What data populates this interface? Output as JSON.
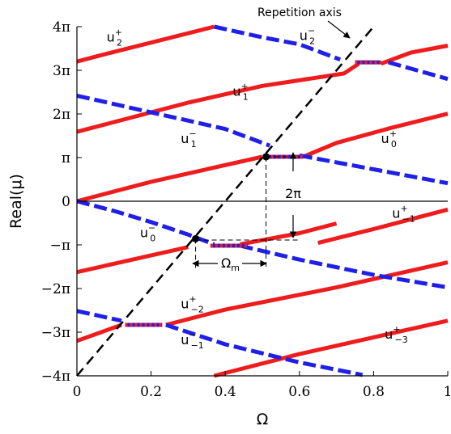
{
  "chart_data": {
    "type": "line",
    "xlabel": "Ω",
    "ylabel": "Real(μ)",
    "xlim": [
      0,
      1
    ],
    "ylim": [
      -12.566,
      12.566
    ],
    "grid": false,
    "x_ticks": [
      {
        "value": 0,
        "label": "0"
      },
      {
        "value": 0.2,
        "label": "0.2"
      },
      {
        "value": 0.4,
        "label": "0.4"
      },
      {
        "value": 0.6,
        "label": "0.6"
      },
      {
        "value": 0.8,
        "label": "0.8"
      },
      {
        "value": 1,
        "label": "1"
      }
    ],
    "y_ticks": [
      {
        "value": -12.566,
        "label": "−4π"
      },
      {
        "value": -9.425,
        "label": "−3π"
      },
      {
        "value": -6.283,
        "label": "−2π"
      },
      {
        "value": -3.142,
        "label": "−π"
      },
      {
        "value": 0,
        "label": "0"
      },
      {
        "value": 3.142,
        "label": "π"
      },
      {
        "value": 6.283,
        "label": "2π"
      },
      {
        "value": 9.425,
        "label": "3π"
      },
      {
        "value": 12.566,
        "label": "4π"
      }
    ],
    "colors": {
      "plus": "#ee1c1c",
      "minus": "#1f1fe8",
      "axis_line": "#000000"
    },
    "series": [
      {
        "style": "plus",
        "points": [
          [
            0,
            10.05
          ],
          [
            0.07,
            10.55
          ],
          [
            0.37,
            12.566
          ]
        ]
      },
      {
        "style": "plus",
        "points": [
          [
            0,
            5.0
          ],
          [
            0.3,
            7.1
          ],
          [
            0.5,
            8.3
          ],
          [
            0.72,
            9.2
          ],
          [
            0.76,
            9.9
          ]
        ]
      },
      {
        "style": "plus",
        "points": [
          [
            0.82,
            9.9
          ],
          [
            0.9,
            10.7
          ],
          [
            1,
            11.2
          ]
        ]
      },
      {
        "style": "plus",
        "points": [
          [
            0,
            0
          ],
          [
            0.2,
            1.4
          ],
          [
            0.5,
            3.2
          ]
        ]
      },
      {
        "style": "plus",
        "points": [
          [
            0.61,
            3.2
          ],
          [
            0.7,
            4.2
          ],
          [
            0.85,
            5.3
          ],
          [
            1,
            6.3
          ]
        ]
      },
      {
        "style": "plus",
        "points": [
          [
            0.65,
            -3.0
          ],
          [
            0.8,
            -2.0
          ],
          [
            1,
            -0.6
          ]
        ]
      },
      {
        "style": "plus",
        "points": [
          [
            0,
            -5.1
          ],
          [
            0.3,
            -3.3
          ]
        ]
      },
      {
        "style": "plus",
        "points": [
          [
            0.44,
            -3.1
          ],
          [
            0.6,
            -2.3
          ],
          [
            0.7,
            -1.6
          ]
        ]
      },
      {
        "style": "plus",
        "points": [
          [
            0,
            -10.05
          ],
          [
            0.12,
            -8.9
          ]
        ]
      },
      {
        "style": "plus",
        "points": [
          [
            0.24,
            -8.9
          ],
          [
            0.4,
            -7.8
          ],
          [
            0.7,
            -6.2
          ],
          [
            1,
            -4.4
          ]
        ]
      },
      {
        "style": "plus",
        "points": [
          [
            0.37,
            -12.566
          ],
          [
            0.6,
            -11.0
          ],
          [
            1,
            -8.6
          ]
        ]
      },
      {
        "style": "minus",
        "points": [
          [
            0.37,
            12.566
          ],
          [
            0.5,
            11.8
          ],
          [
            0.6,
            11.3
          ],
          [
            0.71,
            10.2
          ]
        ]
      },
      {
        "style": "minus",
        "points": [
          [
            0.84,
            10.0
          ],
          [
            1,
            8.8
          ]
        ]
      },
      {
        "style": "minus",
        "points": [
          [
            0,
            7.6
          ],
          [
            0.2,
            6.4
          ],
          [
            0.4,
            5.2
          ],
          [
            0.52,
            4.0
          ]
        ]
      },
      {
        "style": "minus",
        "points": [
          [
            0.6,
            3.3
          ],
          [
            0.8,
            2.3
          ],
          [
            1,
            1.3
          ]
        ]
      },
      {
        "style": "minus",
        "points": [
          [
            0,
            0
          ],
          [
            0.1,
            -0.7
          ],
          [
            0.2,
            -1.5
          ],
          [
            0.3,
            -2.4
          ],
          [
            0.37,
            -3.1
          ]
        ]
      },
      {
        "style": "minus",
        "points": [
          [
            0.44,
            -3.2
          ],
          [
            0.6,
            -4.2
          ],
          [
            0.8,
            -5.3
          ],
          [
            1,
            -6.2
          ]
        ]
      },
      {
        "style": "minus",
        "points": [
          [
            0,
            -7.9
          ],
          [
            0.12,
            -8.6
          ]
        ]
      },
      {
        "style": "minus",
        "points": [
          [
            0.24,
            -8.9
          ],
          [
            0.4,
            -10.3
          ],
          [
            0.6,
            -11.6
          ],
          [
            0.77,
            -12.5
          ]
        ]
      }
    ],
    "gaps": [
      {
        "x": [
          0.75,
          0.82
        ],
        "y": 10.0
      },
      {
        "x": [
          0.51,
          0.61
        ],
        "y": 3.2
      },
      {
        "x": [
          0.36,
          0.46
        ],
        "y": -3.2
      },
      {
        "x": [
          0.13,
          0.23
        ],
        "y": -8.9
      }
    ],
    "repetition_axis": {
      "x": [
        0,
        0.8
      ],
      "y": [
        -12.566,
        12.566
      ]
    },
    "markers": [
      {
        "x": 0.51,
        "y": 3.2
      },
      {
        "x": 0.32,
        "y": -2.7
      }
    ],
    "annotations": {
      "repetition_axis": "Repetition axis",
      "two_pi": "2π",
      "omega_m_base": "Ω",
      "omega_m_sub": "m"
    },
    "band_labels": [
      {
        "base": "u",
        "sup": "+",
        "sub": "2",
        "x": 0.08,
        "y": 11.5
      },
      {
        "base": "u",
        "sup": "−",
        "sub": "2",
        "x": 0.6,
        "y": 11.6
      },
      {
        "base": "u",
        "sup": "+",
        "sub": "1",
        "x": 0.42,
        "y": 7.6
      },
      {
        "base": "u",
        "sup": "−",
        "sub": "1",
        "x": 0.28,
        "y": 4.2
      },
      {
        "base": "u",
        "sup": "+",
        "sub": "0",
        "x": 0.82,
        "y": 4.2
      },
      {
        "base": "u",
        "sup": "+",
        "sub": "−1",
        "x": 0.85,
        "y": -1.2
      },
      {
        "base": "u",
        "sup": "−",
        "sub": "0",
        "x": 0.17,
        "y": -2.6
      },
      {
        "base": "u",
        "sup": "+",
        "sub": "−2",
        "x": 0.28,
        "y": -7.7
      },
      {
        "base": "u",
        "sup": "−",
        "sub": "−1",
        "x": 0.28,
        "y": -10.3
      },
      {
        "base": "u",
        "sup": "+",
        "sub": "−3",
        "x": 0.83,
        "y": -9.9
      }
    ]
  }
}
